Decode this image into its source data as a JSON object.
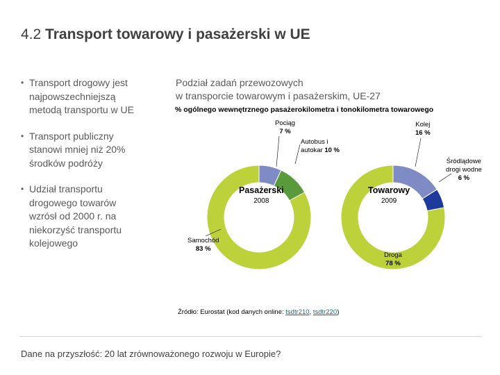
{
  "header": {
    "number": "4.2",
    "title": "Transport towarowy i pasażerski w UE"
  },
  "bullets": [
    {
      "lines": [
        "Transport drogowy jest",
        "najpowszechniejszą",
        "metodą transportu w UE"
      ]
    },
    {
      "lines": [
        "Transport publiczny",
        "stanowi mniej niż 20%",
        "środków podróży"
      ]
    },
    {
      "lines": [
        "Udział transportu",
        "drogowego towarów",
        "wzrósł od 2000 r. na",
        "niekorzyść transportu",
        "kolejowego"
      ]
    }
  ],
  "chart_header": {
    "title_lines": [
      "Podział zadań przewozowych",
      "w transporcie towarowym i pasażerskim, UE-27"
    ],
    "subtitle": "% ogólnego wewnętrznego pasażerokilometra i tonokilometra towarowego"
  },
  "labels": {
    "pociag": {
      "name": "Pociąg",
      "value": "7 %"
    },
    "autobus": {
      "name_lines": [
        "Autobus i",
        "autokar"
      ],
      "value": "10 %"
    },
    "samochod": {
      "name": "Samochód",
      "value": "83 %"
    },
    "kolej": {
      "name": "Kolej",
      "value": "16 %"
    },
    "srodladowe": {
      "name_lines": [
        "Śródlądowe",
        "drogi wodne"
      ],
      "value": "6 %"
    },
    "droga": {
      "name": "Droga",
      "value": "78 %"
    }
  },
  "chart_data": [
    {
      "type": "pie",
      "variant": "donut",
      "title": "Pasażerski",
      "subtitle": "2008",
      "categories": [
        "Samochód",
        "Pociąg",
        "Autobus i autokar"
      ],
      "values": [
        83,
        7,
        10
      ],
      "unit": "%"
    },
    {
      "type": "pie",
      "variant": "donut",
      "title": "Towarowy",
      "subtitle": "2009",
      "categories": [
        "Droga",
        "Kolej",
        "Śródlądowe drogi wodne"
      ],
      "values": [
        78,
        16,
        6
      ],
      "unit": "%"
    }
  ],
  "colors": {
    "samochod": "#bcd13a",
    "pociag": "#7f8bc5",
    "autobus": "#5a9a3c",
    "droga": "#bcd13a",
    "kolej": "#7f8bc5",
    "srodladowe": "#1e3b9c"
  },
  "source": {
    "prefix": "Źródło: Eurostat (kod danych online: ",
    "link1": "tsdtr210",
    "sep": ", ",
    "link2": "tsdtr220",
    "suffix": ")"
  },
  "footer": "Dane na przyszłość: 20 lat zrównoważonego rozwoju w Europie?"
}
